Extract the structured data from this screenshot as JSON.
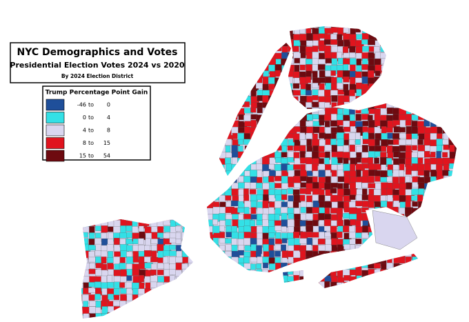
{
  "header": {
    "title": "NYC Demographics and Votes",
    "subtitle": "Presidential Election Votes 2024 vs 2020",
    "note": "By 2024 Election District"
  },
  "legend": {
    "title": "Trump Percentage Point Gain",
    "range_word": "to",
    "items": [
      {
        "min": -46,
        "max": 0,
        "color": "#1f4f9a"
      },
      {
        "min": 0,
        "max": 4,
        "color": "#33e0e6"
      },
      {
        "min": 4,
        "max": 8,
        "color": "#d9d6ef"
      },
      {
        "min": 8,
        "max": 15,
        "color": "#e0141e"
      },
      {
        "min": 15,
        "max": 54,
        "color": "#6e0a10"
      }
    ]
  }
}
